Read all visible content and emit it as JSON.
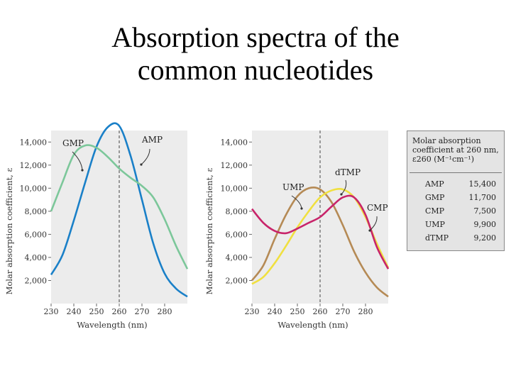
{
  "title": {
    "line1": "Absorption spectra of the",
    "line2": "common nucleotides"
  },
  "legend": {
    "header_line1": "Molar absorption",
    "header_line2": "coefficient at 260 nm,",
    "header_line3": "ε260 (M⁻¹cm⁻¹)",
    "rows": [
      {
        "name": "AMP",
        "value": "15,400"
      },
      {
        "name": "GMP",
        "value": "11,700"
      },
      {
        "name": "CMP",
        "value": "7,500"
      },
      {
        "name": "UMP",
        "value": "9,900"
      },
      {
        "name": "dTMP",
        "value": "9,200"
      }
    ]
  },
  "chart_data": [
    {
      "type": "line",
      "xlabel": "Wavelength (nm)",
      "ylabel": "Molar absorption coefficient, ε",
      "xlim": [
        230,
        290
      ],
      "ylim": [
        0,
        15000
      ],
      "x_ticks": [
        "230",
        "240",
        "250",
        "260",
        "270",
        "280"
      ],
      "y_ticks": [
        "2,000",
        "4,000",
        "6,000",
        "8,000",
        "10,000",
        "12,000",
        "14,000"
      ],
      "reference_line_x": 260,
      "x": [
        230,
        235,
        240,
        245,
        250,
        255,
        260,
        265,
        270,
        275,
        280,
        285,
        290
      ],
      "series": [
        {
          "name": "AMP",
          "color": "#1a80c8",
          "values": [
            2500,
            4200,
            7200,
            10500,
            13600,
            15300,
            15400,
            12800,
            9000,
            5200,
            2600,
            1300,
            600
          ]
        },
        {
          "name": "GMP",
          "color": "#7cc79a",
          "values": [
            8000,
            10500,
            12900,
            13700,
            13500,
            12700,
            11700,
            10900,
            10200,
            9200,
            7300,
            5000,
            3000
          ]
        }
      ]
    },
    {
      "type": "line",
      "xlabel": "Wavelength (nm)",
      "ylabel": "Molar absorption coefficient, ε",
      "xlim": [
        230,
        290
      ],
      "ylim": [
        0,
        15000
      ],
      "x_ticks": [
        "230",
        "240",
        "250",
        "260",
        "270",
        "280"
      ],
      "y_ticks": [
        "2,000",
        "4,000",
        "6,000",
        "8,000",
        "10,000",
        "12,000",
        "14,000"
      ],
      "reference_line_x": 260,
      "x": [
        230,
        235,
        240,
        245,
        250,
        255,
        260,
        265,
        270,
        275,
        280,
        285,
        290
      ],
      "series": [
        {
          "name": "UMP",
          "color": "#b58a55",
          "values": [
            2000,
            3300,
            5600,
            7700,
            9300,
            10000,
            9900,
            8800,
            6800,
            4500,
            2700,
            1400,
            600
          ]
        },
        {
          "name": "dTMP",
          "color": "#f0e040",
          "values": [
            1700,
            2300,
            3500,
            5000,
            6600,
            8000,
            9200,
            9800,
            9900,
            9200,
            7500,
            5200,
            3100
          ]
        },
        {
          "name": "CMP",
          "color": "#c8246a",
          "values": [
            8200,
            7000,
            6300,
            6100,
            6500,
            7000,
            7500,
            8400,
            9200,
            9200,
            7700,
            4900,
            3000
          ]
        }
      ]
    }
  ]
}
